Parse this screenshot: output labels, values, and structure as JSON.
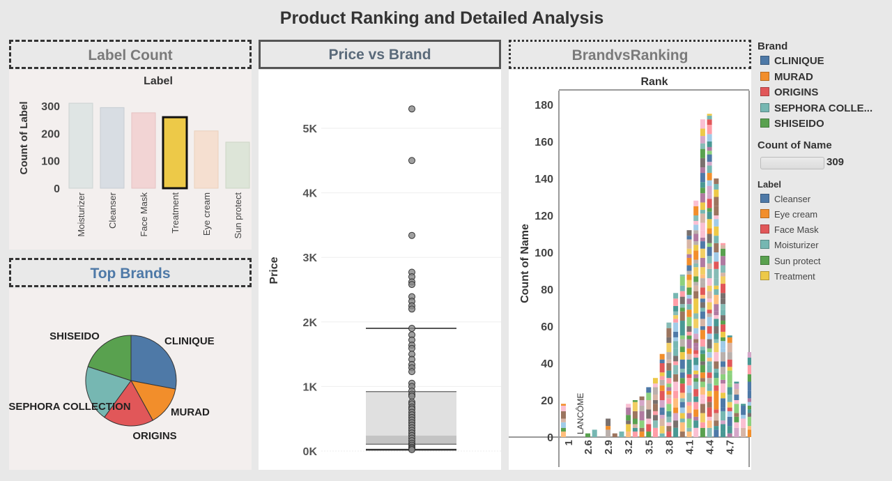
{
  "title": "Product Ranking and Detailed Analysis",
  "label_count": {
    "header": "Label Count",
    "chart_title": "Label",
    "ylabel": "Count of Label",
    "yticks": [
      "300",
      "200",
      "100",
      "0"
    ],
    "categories": [
      "Moisturizer",
      "Cleanser",
      "Face Mask",
      "Treatment",
      "Eye cream",
      "Sun protect"
    ],
    "values": [
      310,
      294,
      275,
      259,
      209,
      168
    ],
    "highlighted": "Treatment"
  },
  "top_brands": {
    "header": "Top Brands",
    "slices": [
      {
        "name": "CLINIQUE",
        "value": 28,
        "color": "#4e79a7"
      },
      {
        "name": "MURAD",
        "value": 14,
        "color": "#f28e2b"
      },
      {
        "name": "ORIGINS",
        "value": 18,
        "color": "#e15759"
      },
      {
        "name": "SEPHORA COLLECTION",
        "value": 20,
        "color": "#76b7b2"
      },
      {
        "name": "SHISEIDO",
        "value": 20,
        "color": "#59a14f"
      }
    ]
  },
  "price_vs_brand": {
    "header": "Price vs Brand",
    "ylabel": "Price",
    "yticks": [
      "5K",
      "4K",
      "3K",
      "2K",
      "1K",
      "0K"
    ],
    "box": {
      "whisker_high": 1900,
      "q3": 920,
      "median": 240,
      "q1": 105,
      "whisker_low": 20
    },
    "points": [
      5300,
      4500,
      3340,
      2770,
      2700,
      2620,
      2580,
      2390,
      2320,
      2250,
      2200,
      1900,
      1800,
      1720,
      1640,
      1590,
      1500,
      1420,
      1340,
      1290,
      1230,
      1050,
      1000,
      930,
      880,
      850,
      760,
      730,
      680,
      650,
      600,
      560,
      520,
      480,
      440,
      400,
      360,
      320,
      280,
      240,
      200,
      160,
      120,
      90,
      60,
      40,
      20
    ]
  },
  "brand_vs_ranking": {
    "header": "BrandvsRanking",
    "top_axis_label": "Rank",
    "ylabel": "Count of Name",
    "yticks": [
      "180",
      "160",
      "140",
      "120",
      "100",
      "80",
      "60",
      "40",
      "20",
      "0"
    ],
    "xticks": [
      "1",
      "2.6",
      "2.9",
      "3.2",
      "3.5",
      "3.8",
      "4.1",
      "4.4",
      "4.7"
    ],
    "annotation": "LANCÔME"
  },
  "chart_data": [
    {
      "type": "bar",
      "title": "Label",
      "ylabel": "Count of Label",
      "categories": [
        "Moisturizer",
        "Cleanser",
        "Face Mask",
        "Treatment",
        "Eye cream",
        "Sun protect"
      ],
      "values": [
        310,
        294,
        275,
        259,
        209,
        168
      ],
      "ylim": [
        0,
        330
      ]
    },
    {
      "type": "pie",
      "categories": [
        "CLINIQUE",
        "MURAD",
        "ORIGINS",
        "SEPHORA COLLECTION",
        "SHISEIDO"
      ],
      "values": [
        28,
        14,
        18,
        20,
        20
      ]
    },
    {
      "type": "scatter",
      "ylabel": "Price",
      "ylim": [
        0,
        5500
      ],
      "box": {
        "whisker_high": 1900,
        "q3": 920,
        "median": 240,
        "q1": 105,
        "whisker_low": 20
      },
      "y": [
        5300,
        4500,
        3340,
        2770,
        2700,
        2620,
        2580,
        2390,
        2320,
        2250,
        2200,
        1900,
        1800,
        1720,
        1640,
        1590,
        1500,
        1420,
        1340,
        1290,
        1230,
        1050,
        1000,
        930,
        880,
        850,
        760,
        730,
        680,
        650,
        600,
        560,
        520,
        480,
        440,
        400,
        360,
        320,
        280,
        240,
        200,
        160,
        120,
        90,
        60,
        40,
        20
      ]
    },
    {
      "type": "bar",
      "stacked": true,
      "xlabel": "Rank",
      "ylabel": "Count of Name",
      "ylim": [
        0,
        185
      ],
      "x": [
        1.0,
        1.5,
        2.0,
        2.5,
        2.6,
        2.7,
        2.8,
        2.9,
        3.0,
        3.1,
        3.2,
        3.3,
        3.4,
        3.5,
        3.6,
        3.7,
        3.8,
        3.9,
        4.0,
        4.1,
        4.2,
        4.3,
        4.4,
        4.5,
        4.6,
        4.7,
        4.8,
        4.9,
        5.0
      ],
      "values": [
        18,
        0,
        0,
        0,
        2,
        4,
        0,
        10,
        2,
        3,
        18,
        20,
        22,
        27,
        32,
        45,
        62,
        78,
        88,
        112,
        128,
        172,
        175,
        140,
        105,
        55,
        30,
        18,
        46
      ]
    }
  ],
  "legend": {
    "brand_title": "Brand",
    "brands": [
      {
        "name": "CLINIQUE",
        "color": "#4e79a7"
      },
      {
        "name": "MURAD",
        "color": "#f28e2b"
      },
      {
        "name": "ORIGINS",
        "color": "#e15759"
      },
      {
        "name": "SEPHORA COLLE...",
        "color": "#76b7b2"
      },
      {
        "name": "SHISEIDO",
        "color": "#59a14f"
      }
    ],
    "count_title": "Count of Name",
    "count_value": "309",
    "label_title": "Label",
    "labels": [
      {
        "name": "Cleanser",
        "color": "#4e79a7"
      },
      {
        "name": "Eye cream",
        "color": "#f28e2b"
      },
      {
        "name": "Face Mask",
        "color": "#e15759"
      },
      {
        "name": "Moisturizer",
        "color": "#76b7b2"
      },
      {
        "name": "Sun protect",
        "color": "#59a14f"
      },
      {
        "name": "Treatment",
        "color": "#edc948"
      }
    ]
  }
}
